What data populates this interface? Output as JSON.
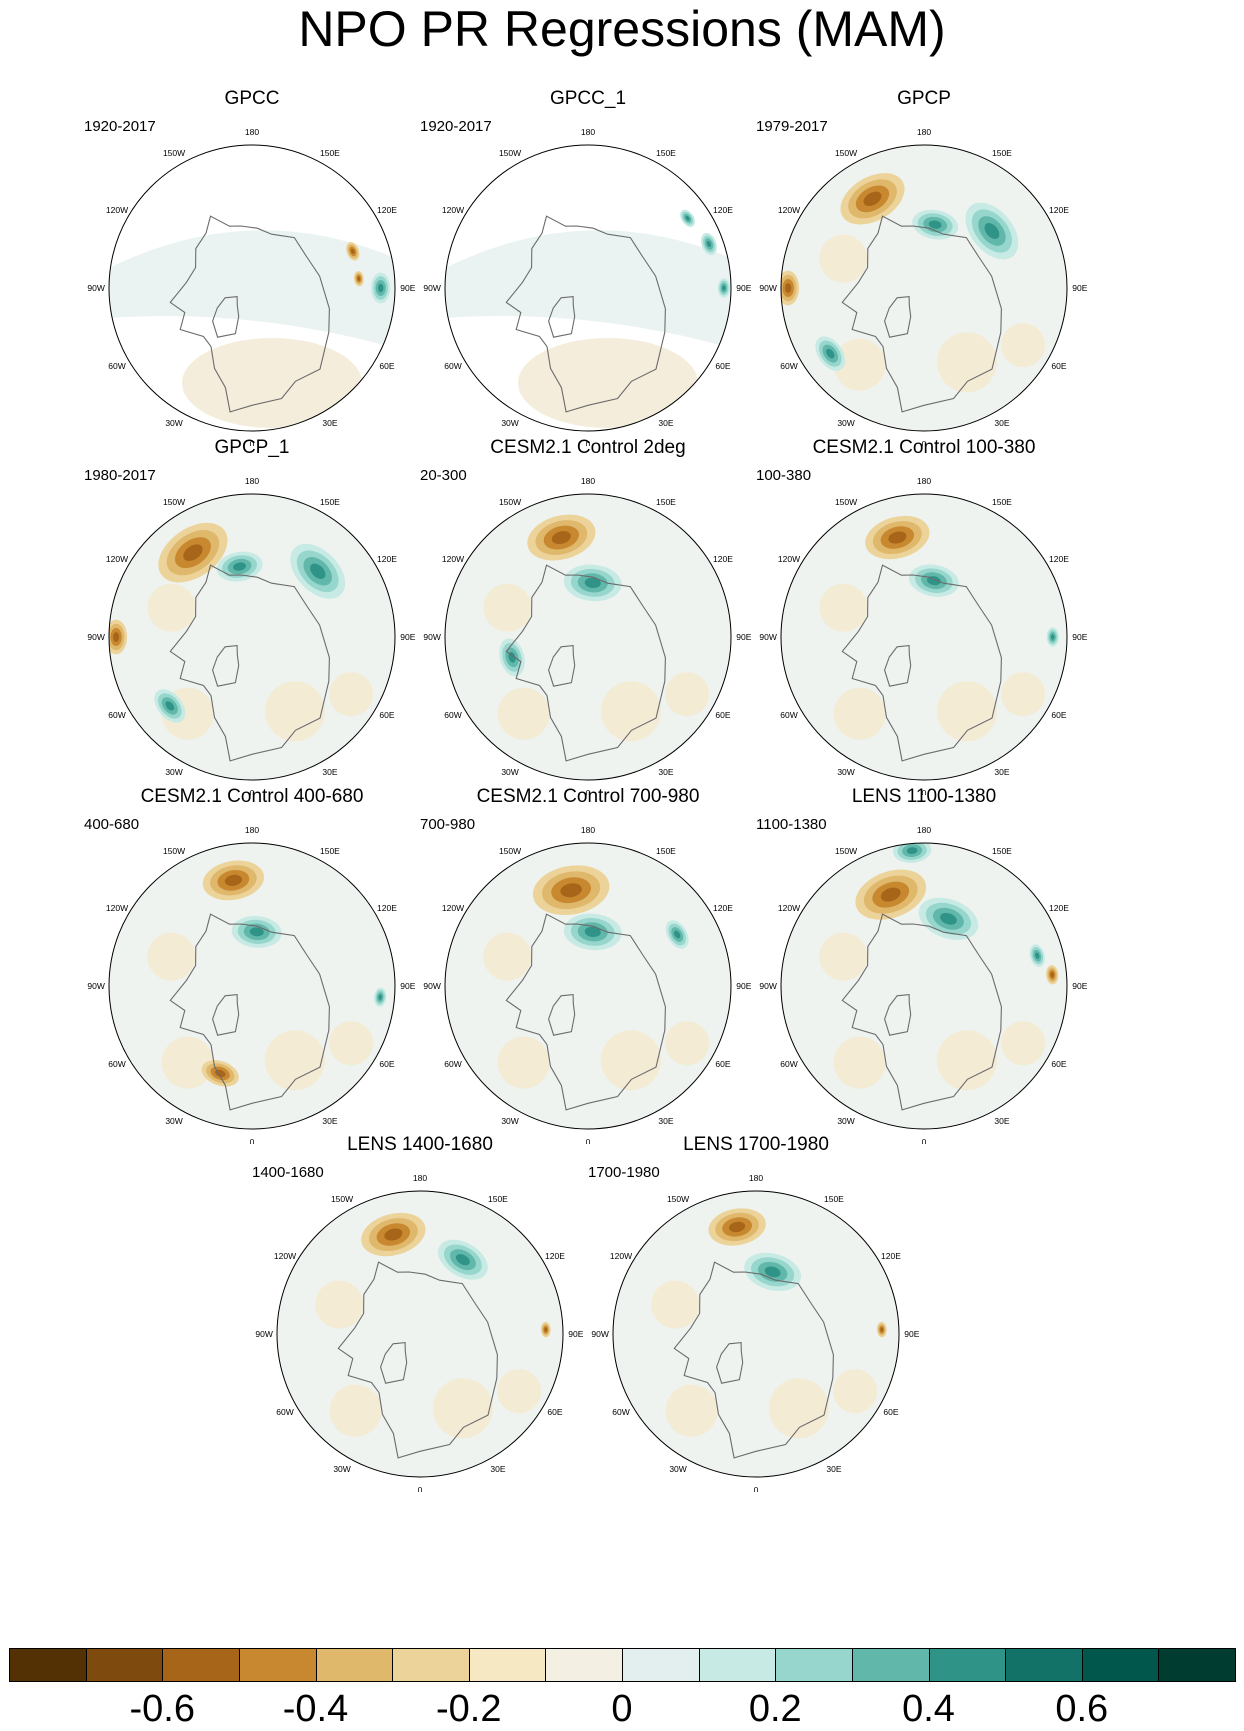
{
  "title": "NPO PR Regressions (MAM)",
  "lon_labels": [
    "180",
    "150E",
    "120E",
    "90E",
    "60E",
    "30E",
    "0",
    "30W",
    "60W",
    "90W",
    "120W",
    "150W"
  ],
  "panels": [
    {
      "title": "GPCC",
      "period": "1920-2017",
      "masked": true,
      "features": [
        {
          "kind": "neg",
          "lon": 110,
          "r": 0.75,
          "s": 0.05
        },
        {
          "kind": "pos",
          "lon": 90,
          "r": 0.9,
          "s": 0.08
        },
        {
          "kind": "neg",
          "lon": 95,
          "r": 0.75,
          "s": 0.04
        }
      ]
    },
    {
      "title": "GPCC_1",
      "period": "1920-2017",
      "masked": true,
      "features": [
        {
          "kind": "pos",
          "lon": 110,
          "r": 0.9,
          "s": 0.06
        },
        {
          "kind": "pos",
          "lon": 90,
          "r": 0.95,
          "s": 0.05
        },
        {
          "kind": "pos",
          "lon": 125,
          "r": 0.85,
          "s": 0.05
        }
      ]
    },
    {
      "title": "GPCP",
      "period": "1979-2017",
      "masked": false,
      "features": [
        {
          "kind": "neg",
          "lon": -150,
          "r": 0.72,
          "s": 0.18
        },
        {
          "kind": "pos",
          "lon": 130,
          "r": 0.62,
          "s": 0.17
        },
        {
          "kind": "pos",
          "lon": 170,
          "r": 0.45,
          "s": 0.12
        },
        {
          "kind": "neg",
          "lon": -90,
          "r": 0.95,
          "s": 0.09
        },
        {
          "kind": "pos",
          "lon": -55,
          "r": 0.8,
          "s": 0.1
        }
      ]
    },
    {
      "title": "GPCP_1",
      "period": "1980-2017",
      "masked": false,
      "features": [
        {
          "kind": "neg",
          "lon": -145,
          "r": 0.72,
          "s": 0.2
        },
        {
          "kind": "pos",
          "lon": 135,
          "r": 0.65,
          "s": 0.17
        },
        {
          "kind": "pos",
          "lon": -170,
          "r": 0.5,
          "s": 0.12
        },
        {
          "kind": "neg",
          "lon": -90,
          "r": 0.95,
          "s": 0.09
        },
        {
          "kind": "pos",
          "lon": -50,
          "r": 0.75,
          "s": 0.1
        }
      ]
    },
    {
      "title": "CESM2.1 Control 2deg",
      "period": "20-300",
      "masked": false,
      "features": [
        {
          "kind": "neg",
          "lon": -165,
          "r": 0.72,
          "s": 0.18
        },
        {
          "kind": "pos",
          "lon": 175,
          "r": 0.38,
          "s": 0.15
        },
        {
          "kind": "pos",
          "lon": -75,
          "r": 0.55,
          "s": 0.1
        }
      ]
    },
    {
      "title": "CESM2.1 Control 100-380",
      "period": "100-380",
      "masked": false,
      "features": [
        {
          "kind": "neg",
          "lon": -165,
          "r": 0.72,
          "s": 0.17
        },
        {
          "kind": "pos",
          "lon": 170,
          "r": 0.4,
          "s": 0.13
        },
        {
          "kind": "pos",
          "lon": 90,
          "r": 0.9,
          "s": 0.05
        }
      ]
    },
    {
      "title": "CESM2.1 Control 400-680",
      "period": "400-680",
      "masked": false,
      "features": [
        {
          "kind": "neg",
          "lon": -170,
          "r": 0.75,
          "s": 0.16
        },
        {
          "kind": "pos",
          "lon": 175,
          "r": 0.38,
          "s": 0.13
        },
        {
          "kind": "pos",
          "lon": 85,
          "r": 0.9,
          "s": 0.05
        },
        {
          "kind": "neg",
          "lon": -20,
          "r": 0.65,
          "s": 0.1
        }
      ]
    },
    {
      "title": "CESM2.1 Control 700-980",
      "period": "700-980",
      "masked": false,
      "features": [
        {
          "kind": "neg",
          "lon": -170,
          "r": 0.68,
          "s": 0.2
        },
        {
          "kind": "pos",
          "lon": 175,
          "r": 0.38,
          "s": 0.15
        },
        {
          "kind": "pos",
          "lon": 120,
          "r": 0.72,
          "s": 0.08
        }
      ]
    },
    {
      "title": "LENS 1100-1380",
      "period": "1100-1380",
      "masked": false,
      "features": [
        {
          "kind": "neg",
          "lon": -160,
          "r": 0.68,
          "s": 0.19
        },
        {
          "kind": "pos",
          "lon": 160,
          "r": 0.5,
          "s": 0.16
        },
        {
          "kind": "neg",
          "lon": 95,
          "r": 0.9,
          "s": 0.05
        },
        {
          "kind": "pos",
          "lon": 105,
          "r": 0.82,
          "s": 0.06
        },
        {
          "kind": "pos",
          "lon": -175,
          "r": 0.95,
          "s": 0.1
        }
      ]
    },
    {
      "title": "LENS 1400-1680",
      "period": "1400-1680",
      "masked": false,
      "features": [
        {
          "kind": "neg",
          "lon": -165,
          "r": 0.72,
          "s": 0.17
        },
        {
          "kind": "pos",
          "lon": 150,
          "r": 0.6,
          "s": 0.14
        },
        {
          "kind": "neg",
          "lon": 92,
          "r": 0.88,
          "s": 0.04
        }
      ]
    },
    {
      "title": "LENS 1700-1980",
      "period": "1700-1980",
      "masked": false,
      "features": [
        {
          "kind": "neg",
          "lon": -170,
          "r": 0.76,
          "s": 0.15
        },
        {
          "kind": "pos",
          "lon": 165,
          "r": 0.45,
          "s": 0.15
        },
        {
          "kind": "neg",
          "lon": 92,
          "r": 0.88,
          "s": 0.04
        }
      ]
    }
  ],
  "colorbar": {
    "colors": [
      "#543005",
      "#7f4a0e",
      "#a66519",
      "#c8882f",
      "#dfb86c",
      "#ecd39a",
      "#f6e8c3",
      "#f4efe3",
      "#e2efee",
      "#c7eae5",
      "#96d6cc",
      "#62b7ab",
      "#2f9388",
      "#127268",
      "#01574b",
      "#003c30"
    ],
    "levels": [
      -0.7,
      -0.6,
      -0.5,
      -0.4,
      -0.3,
      -0.2,
      -0.1,
      0,
      0.1,
      0.2,
      0.3,
      0.4,
      0.5,
      0.6,
      0.7
    ],
    "tick_labels": [
      "-0.6",
      "-0.4",
      "-0.2",
      "0",
      "0.2",
      "0.4",
      "0.6"
    ]
  }
}
